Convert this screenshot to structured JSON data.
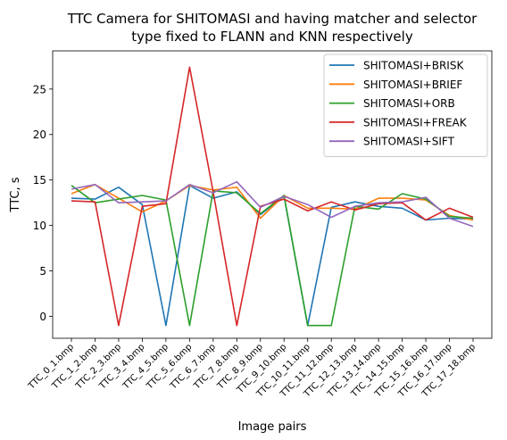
{
  "chart_data": {
    "type": "line",
    "title_lines": [
      "TTC Camera for SHITOMASI and having matcher and selector",
      "type fixed to FLANN and KNN respectively"
    ],
    "xlabel": "Image pairs",
    "ylabel": "TTC, s",
    "ylim": [
      -2.4,
      29.2
    ],
    "yticks": [
      0,
      5,
      10,
      15,
      20,
      25
    ],
    "grid": false,
    "legend_position": "top-right",
    "categories": [
      "TTC_0_1.bmp",
      "TTC_1_2.bmp",
      "TTC_2_3.bmp",
      "TTC_3_4.bmp",
      "TTC_4_5.bmp",
      "TTC_5_6.bmp",
      "TTC_6_7.bmp",
      "TTC_7_8.bmp",
      "TTC_8_9.bmp",
      "TTC_9_10.bmp",
      "TTC_10_11.bmp",
      "TTC_11_12.bmp",
      "TTC_12_13.bmp",
      "TTC_13_14.bmp",
      "TTC_14_15.bmp",
      "TTC_15_16.bmp",
      "TTC_16_17.bmp",
      "TTC_17_18.bmp"
    ],
    "series": [
      {
        "name": "SHITOMASI+BRISK",
        "color": "#1f77b4",
        "values": [
          13.0,
          12.9,
          14.2,
          12.3,
          -1.0,
          14.4,
          13.0,
          13.7,
          11.2,
          13.2,
          -1.0,
          12.0,
          12.6,
          12.1,
          11.9,
          10.6,
          10.8,
          10.7
        ]
      },
      {
        "name": "SHITOMASI+BRIEF",
        "color": "#ff7f0e",
        "values": [
          13.5,
          14.5,
          13.0,
          11.5,
          12.7,
          14.4,
          13.9,
          14.2,
          10.8,
          13.3,
          11.9,
          11.9,
          11.8,
          13.0,
          13.0,
          12.8,
          11.1,
          10.6
        ]
      },
      {
        "name": "SHITOMASI+ORB",
        "color": "#2ca02c",
        "values": [
          14.4,
          12.5,
          12.9,
          13.3,
          12.8,
          -1.0,
          13.8,
          13.6,
          11.3,
          13.3,
          -1.0,
          -1.0,
          12.1,
          11.8,
          13.5,
          12.9,
          11.0,
          10.8
        ]
      },
      {
        "name": "SHITOMASI+FREAK",
        "color": "#d62728",
        "values": [
          12.7,
          12.6,
          -1.0,
          12.1,
          12.4,
          27.4,
          13.7,
          -1.0,
          12.1,
          12.9,
          11.6,
          12.6,
          11.7,
          12.4,
          12.5,
          10.6,
          11.9,
          10.9
        ]
      },
      {
        "name": "SHITOMASI+SIFT",
        "color": "#9467bd",
        "values": [
          14.0,
          14.5,
          12.5,
          12.6,
          12.7,
          14.5,
          13.6,
          14.8,
          12.0,
          13.2,
          12.3,
          10.9,
          12.1,
          12.5,
          12.6,
          13.1,
          10.8,
          9.9
        ]
      }
    ]
  }
}
